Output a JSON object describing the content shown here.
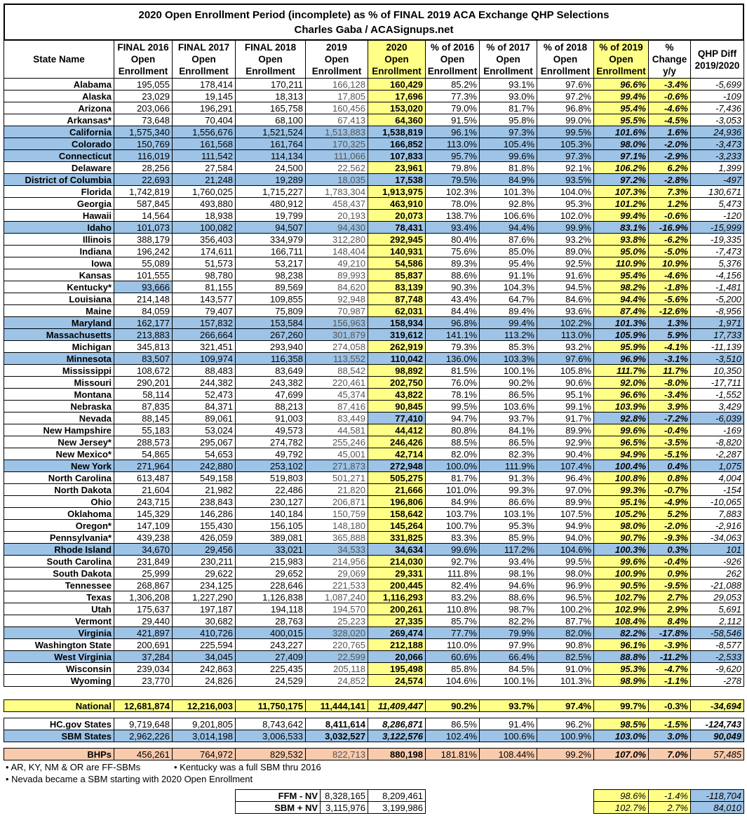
{
  "title": [
    "2020 Open Enrollment Period (incomplete) as % of FINAL 2019 ACA Exchange QHP Selections",
    "Charles Gaba / ACASignups.net"
  ],
  "table": {
    "header": [
      [
        "State Name"
      ],
      [
        "FINAL 2016",
        "Open",
        "Enrollment"
      ],
      [
        "FINAL 2017",
        "Open",
        "Enrollment"
      ],
      [
        "FINAL 2018",
        "Open",
        "Enrollment"
      ],
      [
        "2019",
        "Open",
        "Enrollment"
      ],
      [
        "2020",
        "Open",
        "Enrollment"
      ],
      [
        "% of 2016",
        "Open",
        "Enrollment"
      ],
      [
        "% of 2017",
        "Open",
        "Enrollment"
      ],
      [
        "% of 2018",
        "Open",
        "Enrollment"
      ],
      [
        "% of 2019",
        "Open",
        "Enrollment"
      ],
      [
        "%",
        "Change",
        "y/y"
      ],
      [
        "QHP Diff",
        "2019/2020"
      ]
    ],
    "rows": [
      [
        "Alabama",
        "195,055",
        "178,414",
        "170,211",
        "166,128",
        "160,429",
        "85.2%",
        "93.1%",
        "97.6%",
        "96.6%",
        "-3.4%",
        "-5,699"
      ],
      [
        "Alaska",
        "23,029",
        "19,145",
        "18,313",
        "17,805",
        "17,696",
        "77.3%",
        "93.0%",
        "97.2%",
        "99.4%",
        "-0.6%",
        "-109"
      ],
      [
        "Arizona",
        "203,066",
        "196,291",
        "165,758",
        "160,456",
        "153,020",
        "79.0%",
        "81.7%",
        "96.8%",
        "95.4%",
        "-4.6%",
        "-7,436"
      ],
      [
        "Arkansas*",
        "73,648",
        "70,404",
        "68,100",
        "67,413",
        "64,360",
        "91.5%",
        "95.8%",
        "99.0%",
        "95.5%",
        "-4.5%",
        "-3,053"
      ],
      [
        "California",
        "1,575,340",
        "1,556,676",
        "1,521,524",
        "1,513,883",
        "1,538,819",
        "96.1%",
        "97.3%",
        "99.5%",
        "101.6%",
        "1.6%",
        "24,936"
      ],
      [
        "Colorado",
        "150,769",
        "161,568",
        "161,764",
        "170,325",
        "166,852",
        "113.0%",
        "105.4%",
        "105.3%",
        "98.0%",
        "-2.0%",
        "-3,473"
      ],
      [
        "Connecticut",
        "116,019",
        "111,542",
        "114,134",
        "111,066",
        "107,833",
        "95.7%",
        "99.6%",
        "97.3%",
        "97.1%",
        "-2.9%",
        "-3,233"
      ],
      [
        "Delaware",
        "28,256",
        "27,584",
        "24,500",
        "22,562",
        "23,961",
        "79.8%",
        "81.8%",
        "92.1%",
        "106.2%",
        "6.2%",
        "1,399"
      ],
      [
        "District of Columbia",
        "22,693",
        "21,248",
        "19,289",
        "18,035",
        "17,538",
        "79.5%",
        "84.9%",
        "93.5%",
        "97.2%",
        "-2.8%",
        "-497"
      ],
      [
        "Florida",
        "1,742,819",
        "1,760,025",
        "1,715,227",
        "1,783,304",
        "1,913,975",
        "102.3%",
        "101.3%",
        "104.0%",
        "107.3%",
        "7.3%",
        "130,671"
      ],
      [
        "Georgia",
        "587,845",
        "493,880",
        "480,912",
        "458,437",
        "463,910",
        "78.0%",
        "92.8%",
        "95.3%",
        "101.2%",
        "1.2%",
        "5,473"
      ],
      [
        "Hawaii",
        "14,564",
        "18,938",
        "19,799",
        "20,193",
        "20,073",
        "138.7%",
        "106.6%",
        "102.0%",
        "99.4%",
        "-0.6%",
        "-120"
      ],
      [
        "Idaho",
        "101,073",
        "100,082",
        "94,507",
        "94,430",
        "78,431",
        "93.4%",
        "94.4%",
        "99.9%",
        "83.1%",
        "-16.9%",
        "-15,999"
      ],
      [
        "Illinois",
        "388,179",
        "356,403",
        "334,979",
        "312,280",
        "292,945",
        "80.4%",
        "87.6%",
        "93.2%",
        "93.8%",
        "-6.2%",
        "-19,335"
      ],
      [
        "Indiana",
        "196,242",
        "174,611",
        "166,711",
        "148,404",
        "140,931",
        "75.6%",
        "85.0%",
        "89.0%",
        "95.0%",
        "-5.0%",
        "-7,473"
      ],
      [
        "Iowa",
        "55,089",
        "51,573",
        "53,217",
        "49,210",
        "54,586",
        "89.3%",
        "95.4%",
        "92.5%",
        "110.9%",
        "10.9%",
        "5,376"
      ],
      [
        "Kansas",
        "101,555",
        "98,780",
        "98,238",
        "89,993",
        "85,837",
        "88.6%",
        "91.1%",
        "91.6%",
        "95.4%",
        "-4.6%",
        "-4,156"
      ],
      [
        "Kentucky*",
        "93,666",
        "81,155",
        "89,569",
        "84,620",
        "83,139",
        "90.3%",
        "104.3%",
        "94.5%",
        "98.2%",
        "-1.8%",
        "-1,481"
      ],
      [
        "Louisiana",
        "214,148",
        "143,577",
        "109,855",
        "92,948",
        "87,748",
        "43.4%",
        "64.7%",
        "84.6%",
        "94.4%",
        "-5.6%",
        "-5,200"
      ],
      [
        "Maine",
        "84,059",
        "79,407",
        "75,809",
        "70,987",
        "62,031",
        "84.4%",
        "89.4%",
        "93.6%",
        "87.4%",
        "-12.6%",
        "-8,956"
      ],
      [
        "Maryland",
        "162,177",
        "157,832",
        "153,584",
        "156,963",
        "158,934",
        "96.8%",
        "99.4%",
        "102.2%",
        "101.3%",
        "1.3%",
        "1,971"
      ],
      [
        "Massachusetts",
        "213,883",
        "266,664",
        "267,260",
        "301,879",
        "319,612",
        "141.1%",
        "113.2%",
        "113.0%",
        "105.9%",
        "5.9%",
        "17,733"
      ],
      [
        "Michigan",
        "345,813",
        "321,451",
        "293,940",
        "274,058",
        "262,919",
        "79.3%",
        "85.3%",
        "93.2%",
        "95.9%",
        "-4.1%",
        "-11,139"
      ],
      [
        "Minnesota",
        "83,507",
        "109,974",
        "116,358",
        "113,552",
        "110,042",
        "136.0%",
        "103.3%",
        "97.6%",
        "96.9%",
        "-3.1%",
        "-3,510"
      ],
      [
        "Mississippi",
        "108,672",
        "88,483",
        "83,649",
        "88,542",
        "98,892",
        "81.5%",
        "100.1%",
        "105.8%",
        "111.7%",
        "11.7%",
        "10,350"
      ],
      [
        "Missouri",
        "290,201",
        "244,382",
        "243,382",
        "220,461",
        "202,750",
        "76.0%",
        "90.2%",
        "90.6%",
        "92.0%",
        "-8.0%",
        "-17,711"
      ],
      [
        "Montana",
        "58,114",
        "52,473",
        "47,699",
        "45,374",
        "43,822",
        "78.1%",
        "86.5%",
        "95.1%",
        "96.6%",
        "-3.4%",
        "-1,552"
      ],
      [
        "Nebraska",
        "87,835",
        "84,371",
        "88,213",
        "87,416",
        "90,845",
        "99.5%",
        "103.6%",
        "99.1%",
        "103.9%",
        "3.9%",
        "3,429"
      ],
      [
        "Nevada",
        "88,145",
        "89,061",
        "91,003",
        "83,449",
        "77,410",
        "94.7%",
        "93.7%",
        "91.7%",
        "92.8%",
        "-7.2%",
        "-6,039"
      ],
      [
        "New Hampshire",
        "55,183",
        "53,024",
        "49,573",
        "44,581",
        "44,412",
        "80.8%",
        "84.1%",
        "89.9%",
        "99.6%",
        "-0.4%",
        "-169"
      ],
      [
        "New Jersey*",
        "288,573",
        "295,067",
        "274,782",
        "255,246",
        "246,426",
        "88.5%",
        "86.5%",
        "92.9%",
        "96.5%",
        "-3.5%",
        "-8,820"
      ],
      [
        "New Mexico*",
        "54,865",
        "54,653",
        "49,792",
        "45,001",
        "42,714",
        "82.0%",
        "82.3%",
        "90.4%",
        "94.9%",
        "-5.1%",
        "-2,287"
      ],
      [
        "New York",
        "271,964",
        "242,880",
        "253,102",
        "271,873",
        "272,948",
        "100.0%",
        "111.9%",
        "107.4%",
        "100.4%",
        "0.4%",
        "1,075"
      ],
      [
        "North Carolina",
        "613,487",
        "549,158",
        "519,803",
        "501,271",
        "505,275",
        "81.7%",
        "91.3%",
        "96.4%",
        "100.8%",
        "0.8%",
        "4,004"
      ],
      [
        "North Dakota",
        "21,604",
        "21,982",
        "22,486",
        "21,820",
        "21,666",
        "101.0%",
        "99.3%",
        "97.0%",
        "99.3%",
        "-0.7%",
        "-154"
      ],
      [
        "Ohio",
        "243,715",
        "238,843",
        "230,127",
        "206,871",
        "196,806",
        "84.9%",
        "86.6%",
        "89.9%",
        "95.1%",
        "-4.9%",
        "-10,065"
      ],
      [
        "Oklahoma",
        "145,329",
        "146,286",
        "140,184",
        "150,759",
        "158,642",
        "103.7%",
        "103.1%",
        "107.5%",
        "105.2%",
        "5.2%",
        "7,883"
      ],
      [
        "Oregon*",
        "147,109",
        "155,430",
        "156,105",
        "148,180",
        "145,264",
        "100.7%",
        "95.3%",
        "94.9%",
        "98.0%",
        "-2.0%",
        "-2,916"
      ],
      [
        "Pennsylvania*",
        "439,238",
        "426,059",
        "389,081",
        "365,888",
        "331,825",
        "83.3%",
        "85.9%",
        "94.0%",
        "90.7%",
        "-9.3%",
        "-34,063"
      ],
      [
        "Rhode Island",
        "34,670",
        "29,456",
        "33,021",
        "34,533",
        "34,634",
        "99.6%",
        "117.2%",
        "104.6%",
        "100.3%",
        "0.3%",
        "101"
      ],
      [
        "South Carolina",
        "231,849",
        "230,211",
        "215,983",
        "214,956",
        "214,030",
        "92.7%",
        "93.4%",
        "99.5%",
        "99.6%",
        "-0.4%",
        "-926"
      ],
      [
        "South Dakota",
        "25,999",
        "29,622",
        "29,652",
        "29,069",
        "29,331",
        "111.8%",
        "98.1%",
        "98.0%",
        "100.9%",
        "0.9%",
        "262"
      ],
      [
        "Tennessee",
        "268,867",
        "234,125",
        "228,646",
        "221,533",
        "200,445",
        "82.4%",
        "94.6%",
        "96.9%",
        "90.5%",
        "-9.5%",
        "-21,088"
      ],
      [
        "Texas",
        "1,306,208",
        "1,227,290",
        "1,126,838",
        "1,087,240",
        "1,116,293",
        "83.2%",
        "88.6%",
        "96.5%",
        "102.7%",
        "2.7%",
        "29,053"
      ],
      [
        "Utah",
        "175,637",
        "197,187",
        "194,118",
        "194,570",
        "200,261",
        "110.8%",
        "98.7%",
        "100.2%",
        "102.9%",
        "2.9%",
        "5,691"
      ],
      [
        "Vermont",
        "29,440",
        "30,682",
        "28,763",
        "25,223",
        "27,335",
        "85.7%",
        "82.2%",
        "87.7%",
        "108.4%",
        "8.4%",
        "2,112"
      ],
      [
        "Virginia",
        "421,897",
        "410,726",
        "400,015",
        "328,020",
        "269,474",
        "77.7%",
        "79.9%",
        "82.0%",
        "82.2%",
        "-17.8%",
        "-58,546"
      ],
      [
        "Washington State",
        "200,691",
        "225,594",
        "243,227",
        "220,765",
        "212,188",
        "110.0%",
        "97.9%",
        "90.8%",
        "96.1%",
        "-3.9%",
        "-8,577"
      ],
      [
        "West Virginia",
        "37,284",
        "34,045",
        "27,409",
        "22,599",
        "20,066",
        "60.6%",
        "66.4%",
        "82.5%",
        "88.8%",
        "-11.2%",
        "-2,533"
      ],
      [
        "Wisconsin",
        "239,034",
        "242,863",
        "225,435",
        "205,118",
        "195,498",
        "85.8%",
        "84.5%",
        "91.0%",
        "95.3%",
        "-4.7%",
        "-9,620"
      ],
      [
        "Wyoming",
        "23,770",
        "24,826",
        "24,529",
        "24,852",
        "24,574",
        "104.6%",
        "100.1%",
        "101.3%",
        "98.9%",
        "-1.1%",
        "-278"
      ]
    ],
    "totals": [
      [
        "National",
        "12,681,874",
        "12,216,003",
        "11,750,175",
        "11,444,141",
        "11,409,447",
        "90.2%",
        "93.7%",
        "97.4%",
        "99.7%",
        "-0.3%",
        "-34,694"
      ],
      [
        "HC.gov States",
        "9,719,648",
        "9,201,805",
        "8,743,642",
        "8,411,614",
        "8,286,871",
        "86.5%",
        "91.4%",
        "96.2%",
        "98.5%",
        "-1.5%",
        "-124,743"
      ],
      [
        "SBM States",
        "2,962,226",
        "3,014,198",
        "3,006,533",
        "3,032,527",
        "3,122,576",
        "102.4%",
        "100.6%",
        "100.9%",
        "103.0%",
        "3.0%",
        "90,049"
      ],
      [
        "BHPs",
        "456,261",
        "764,972",
        "829,532",
        "822,713",
        "880,198",
        "181.81%",
        "108.44%",
        "99.2%",
        "107.0%",
        "7.0%",
        "57,485"
      ]
    ]
  },
  "notes": [
    "• AR, KY, NM & OR are FF-SBMs",
    "• Kentucky was a full SBM thru 2016",
    "• Nevada became a SBM starting with 2020 Open Enrollment"
  ],
  "bottom": [
    [
      "FFM - NV",
      "8,328,165",
      "8,209,461",
      "98.6%",
      "-1.4%",
      "-118,704"
    ],
    [
      "SBM + NV",
      "3,115,976",
      "3,199,986",
      "102.7%",
      "2.7%",
      "84,010"
    ]
  ]
}
